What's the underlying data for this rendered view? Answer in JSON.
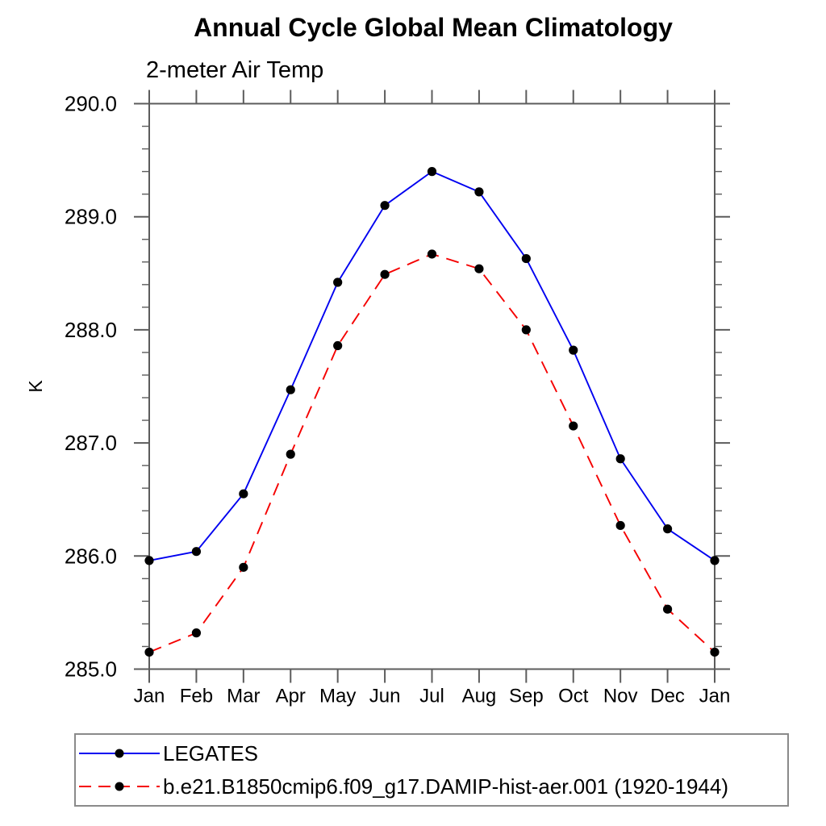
{
  "title": "Annual Cycle Global Mean Climatology",
  "subtitle": "2-meter Air Temp",
  "chart_data": {
    "type": "line",
    "title": "Annual Cycle Global Mean Climatology",
    "subtitle": "2-meter Air Temp",
    "xlabel": "",
    "ylabel": "K",
    "x_tick_labels": [
      "Jan",
      "Feb",
      "Mar",
      "Apr",
      "May",
      "Jun",
      "Jul",
      "Aug",
      "Sep",
      "Oct",
      "Nov",
      "Dec",
      "Jan"
    ],
    "ylim": [
      285.0,
      290.0
    ],
    "y_major_ticks": [
      285.0,
      286.0,
      287.0,
      288.0,
      289.0,
      290.0
    ],
    "y_minor_step": 0.2,
    "grid": false,
    "legend_position": "bottom-left-box",
    "series": [
      {
        "name": "LEGATES",
        "color": "#0000f0",
        "line_style": "solid",
        "marker": "filled-circle",
        "marker_color": "#000000",
        "values": [
          285.96,
          286.04,
          286.55,
          287.47,
          288.42,
          289.1,
          289.4,
          289.22,
          288.63,
          287.82,
          286.86,
          286.24,
          285.96
        ]
      },
      {
        "name": "b.e21.B1850cmip6.f09_g17.DAMIP-hist-aer.001 (1920-1944)",
        "color": "#f50000",
        "line_style": "dashed",
        "marker": "filled-circle",
        "marker_color": "#000000",
        "values": [
          285.15,
          285.32,
          285.9,
          286.9,
          287.86,
          288.49,
          288.67,
          288.54,
          288.0,
          287.15,
          286.27,
          285.53,
          285.15
        ]
      }
    ]
  }
}
